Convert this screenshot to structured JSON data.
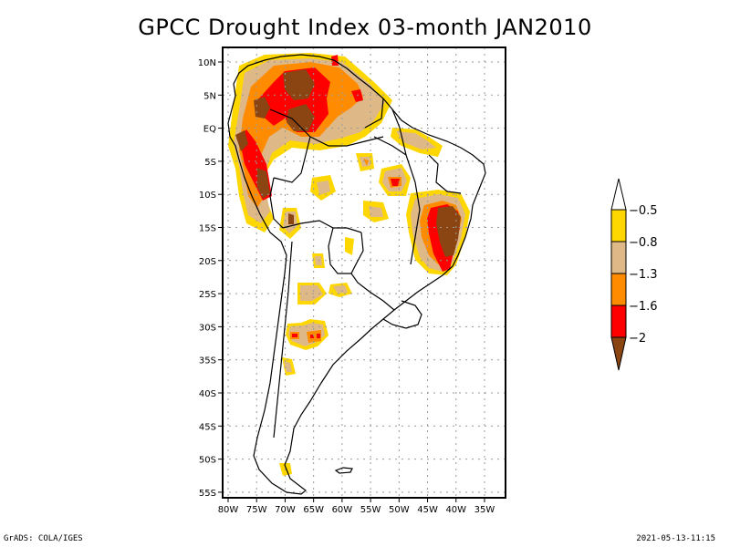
{
  "title": "GPCC Drought Index 03-month JAN2010",
  "footer": {
    "left": "GrADS: COLA/IGES",
    "right": "2021-05-13-11:15"
  },
  "map": {
    "region": "South America",
    "variable": "Drought Index (3-month)",
    "period": "JAN2010",
    "lat_ticks": [
      "10N",
      "5N",
      "EQ",
      "5S",
      "10S",
      "15S",
      "20S",
      "25S",
      "30S",
      "35S",
      "40S",
      "45S",
      "50S",
      "55S"
    ],
    "lat_values": [
      10,
      5,
      0,
      -5,
      -10,
      -15,
      -20,
      -25,
      -30,
      -35,
      -40,
      -45,
      -50,
      -55
    ],
    "lon_ticks": [
      "80W",
      "75W",
      "70W",
      "65W",
      "60W",
      "55W",
      "50W",
      "45W",
      "40W",
      "35W"
    ],
    "lon_values": [
      -80,
      -75,
      -70,
      -65,
      -60,
      -55,
      -50,
      -45,
      -40,
      -35
    ],
    "extent": {
      "lon_min": -81,
      "lon_max": -31,
      "lat_min": -56,
      "lat_max": 12
    }
  },
  "colorbar": {
    "labels": [
      "-0.5",
      "-0.8",
      "-1.3",
      "-1.6",
      "-2"
    ],
    "bins": [
      {
        "range": "> -0.5",
        "color": "#ffffff"
      },
      {
        "range": "-0.8 to -0.5",
        "color": "#ffd700"
      },
      {
        "range": "-1.3 to -0.8",
        "color": "#deb887"
      },
      {
        "range": "-1.6 to -1.3",
        "color": "#ff8c00"
      },
      {
        "range": "-2 to -1.6",
        "color": "#ff0000"
      },
      {
        "range": "< -2",
        "color": "#8b4513"
      }
    ]
  }
}
